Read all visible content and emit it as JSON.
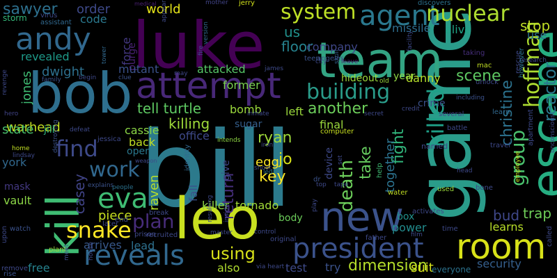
{
  "background": "#000000",
  "words": [
    {
      "text": "bill",
      "color": "#2c7a8c"
    },
    {
      "text": "game",
      "color": "#2a9c8a"
    },
    {
      "text": "luke",
      "color": "#440154"
    },
    {
      "text": "team",
      "color": "#33a483"
    },
    {
      "text": "bob",
      "color": "#2e6f8e"
    },
    {
      "text": "attempt",
      "color": "#482878"
    },
    {
      "text": "escape",
      "color": "#26ad81"
    },
    {
      "text": "leo",
      "color": "#c9e020"
    },
    {
      "text": "new",
      "color": "#3b528b"
    },
    {
      "text": "kill",
      "color": "#3fbc73"
    },
    {
      "text": "andy",
      "color": "#31688e"
    },
    {
      "text": "agent",
      "color": "#2a788e"
    },
    {
      "text": "president",
      "color": "#3b528b"
    },
    {
      "text": "reveals",
      "color": "#31688e"
    },
    {
      "text": "room",
      "color": "#d8e219"
    },
    {
      "text": "nuclear",
      "color": "#addc30"
    },
    {
      "text": "system",
      "color": "#bddf26"
    },
    {
      "text": "building",
      "color": "#2a9c8a"
    },
    {
      "text": "find",
      "color": "#3e4a89"
    },
    {
      "text": "eva",
      "color": "#3fbc73"
    },
    {
      "text": "snake",
      "color": "#fde725"
    },
    {
      "text": "work",
      "color": "#31688e"
    },
    {
      "text": "killed",
      "color": "#1fa088"
    },
    {
      "text": "hoffman",
      "color": "#addc30"
    },
    {
      "text": "group",
      "color": "#4ac16d"
    },
    {
      "text": "reactor",
      "color": "#2a788e"
    },
    {
      "text": "christine",
      "color": "#2c728e"
    },
    {
      "text": "dimension",
      "color": "#b5de2b"
    },
    {
      "text": "plan",
      "color": "#472c7a"
    },
    {
      "text": "using",
      "color": "#d8e219"
    },
    {
      "text": "tell turtle",
      "color": "#5ec962"
    },
    {
      "text": "killing",
      "color": "#9fda3a"
    },
    {
      "text": "warhead",
      "color": "#c2df23"
    },
    {
      "text": "casey",
      "color": "#414487"
    },
    {
      "text": "return",
      "color": "#472f7d"
    },
    {
      "text": "fight",
      "color": "#31b57b"
    },
    {
      "text": "together",
      "color": "#2c728e"
    },
    {
      "text": "ryan",
      "color": "#9fda3a"
    },
    {
      "text": "death",
      "color": "#6ccd5a"
    },
    {
      "text": "take",
      "color": "#65cb5e"
    },
    {
      "text": "key",
      "color": "#fde725"
    },
    {
      "text": "jo",
      "color": "#d8e219"
    },
    {
      "text": "another",
      "color": "#6ccd5a"
    },
    {
      "text": "scene",
      "color": "#5ec962"
    },
    {
      "text": "floor",
      "color": "#26828e"
    },
    {
      "text": "us",
      "color": "#21918c"
    },
    {
      "text": "world",
      "color": "#e5e419"
    },
    {
      "text": "bomb",
      "color": "#9bd93c"
    },
    {
      "text": "sawyer",
      "color": "#2d708e"
    },
    {
      "text": "revealed",
      "color": "#1e9b8a"
    },
    {
      "text": "dwight",
      "color": "#2d708e"
    },
    {
      "text": "jones",
      "color": "#3fbc73"
    },
    {
      "text": "cassie",
      "color": "#8bd646"
    },
    {
      "text": "force",
      "color": "#443983"
    },
    {
      "text": "purge",
      "color": "#482173"
    },
    {
      "text": "mutant",
      "color": "#3b528b"
    },
    {
      "text": "attacked",
      "color": "#56c667"
    },
    {
      "text": "former",
      "color": "#7ad151"
    },
    {
      "text": "order",
      "color": "#3e4989"
    },
    {
      "text": "code",
      "color": "#2a788e"
    },
    {
      "text": "company",
      "color": "#3f4788"
    },
    {
      "text": "missile",
      "color": "#2e6d8e"
    },
    {
      "text": "alive",
      "color": "#20a386"
    },
    {
      "text": "stop",
      "color": "#c0df25"
    },
    {
      "text": "use",
      "color": "#2c728e"
    },
    {
      "text": "state",
      "color": "#4ac16d"
    },
    {
      "text": "jill",
      "color": "#2fb47c"
    },
    {
      "text": "back",
      "color": "#c2df23"
    },
    {
      "text": "open",
      "color": "#2a788e"
    },
    {
      "text": "york",
      "color": "#31688e"
    },
    {
      "text": "left",
      "color": "#9bd93c"
    },
    {
      "text": "sugar",
      "color": "#355f8d"
    },
    {
      "text": "egg",
      "color": "#fde725"
    },
    {
      "text": "office",
      "color": "#3e4989"
    },
    {
      "text": "final",
      "color": "#9bd93c"
    },
    {
      "text": "device",
      "color": "#3e4989"
    },
    {
      "text": "raven",
      "color": "#b5de2b"
    },
    {
      "text": "killer",
      "color": "#8fd744"
    },
    {
      "text": "tornado",
      "color": "#a2da37"
    },
    {
      "text": "fall",
      "color": "#3b528b"
    },
    {
      "text": "give",
      "color": "#3e4989"
    },
    {
      "text": "bud",
      "color": "#3f4889"
    },
    {
      "text": "trap",
      "color": "#6ece58"
    },
    {
      "text": "learns",
      "color": "#b8de29"
    },
    {
      "text": "power",
      "color": "#228c8d"
    },
    {
      "text": "box",
      "color": "#21918c"
    },
    {
      "text": "body",
      "color": "#6ccd5a"
    },
    {
      "text": "piece",
      "color": "#c8e020"
    },
    {
      "text": "arrives",
      "color": "#38598c"
    },
    {
      "text": "lead",
      "color": "#2d708e"
    },
    {
      "text": "free",
      "color": "#26828e"
    },
    {
      "text": "also",
      "color": "#b0dd2f"
    },
    {
      "text": "test",
      "color": "#3e4a89"
    },
    {
      "text": "try",
      "color": "#3b528b"
    },
    {
      "text": "suit",
      "color": "#d5e21a"
    },
    {
      "text": "security",
      "color": "#355f8d"
    },
    {
      "text": "everyone",
      "color": "#2c728e"
    },
    {
      "text": "vault",
      "color": "#8bd646"
    },
    {
      "text": "mask",
      "color": "#443983"
    },
    {
      "text": "danny",
      "color": "#b5de2b"
    },
    {
      "text": "year",
      "color": "#8fd744"
    },
    {
      "text": "crime",
      "color": "#3b528b"
    },
    {
      "text": "storm",
      "color": "#35b779"
    },
    {
      "text": "virus",
      "color": "#3e4989"
    },
    {
      "text": "assistant",
      "color": "#31688e"
    },
    {
      "text": "medical",
      "color": "#482071"
    },
    {
      "text": "mother",
      "color": "#414487"
    },
    {
      "text": "jerry",
      "color": "#d2e21b"
    },
    {
      "text": "discovers",
      "color": "#2c728e"
    },
    {
      "text": "research",
      "color": "#3e4989"
    },
    {
      "text": "city",
      "color": "#3e4989"
    },
    {
      "text": "leave",
      "color": "#481f70"
    },
    {
      "text": "skull",
      "color": "#355f8d"
    },
    {
      "text": "hideout",
      "color": "#9bd93c"
    },
    {
      "text": "old",
      "color": "#9bd93c"
    },
    {
      "text": "facility",
      "color": "#3e4989"
    },
    {
      "text": "taking",
      "color": "#472f7d"
    },
    {
      "text": "mac",
      "color": "#c2df23"
    },
    {
      "text": "tower",
      "color": "#31688e"
    },
    {
      "text": "begin",
      "color": "#3e4989"
    },
    {
      "text": "clue",
      "color": "#3b528b"
    },
    {
      "text": "may",
      "color": "#3f4788"
    },
    {
      "text": "james",
      "color": "#3e4a89"
    },
    {
      "text": "fire",
      "color": "#3e4989"
    },
    {
      "text": "version",
      "color": "#31688e"
    },
    {
      "text": "appears",
      "color": "#3e4989"
    },
    {
      "text": "teen",
      "color": "#3b528b"
    },
    {
      "text": "angeles",
      "color": "#3b528b"
    },
    {
      "text": "rescue",
      "color": "#3e4989"
    },
    {
      "text": "however",
      "color": "#2c728e"
    },
    {
      "text": "unlock",
      "color": "#3e4989"
    },
    {
      "text": "including",
      "color": "#3b528b"
    },
    {
      "text": "learn",
      "color": "#31688e"
    },
    {
      "text": "several",
      "color": "#3e4989"
    },
    {
      "text": "battle",
      "color": "#3e4989"
    },
    {
      "text": "apartment",
      "color": "#3e4989"
    },
    {
      "text": "unconscious",
      "color": "#3e4989"
    },
    {
      "text": "hero",
      "color": "#414487"
    },
    {
      "text": "revenge",
      "color": "#3e4989"
    },
    {
      "text": "family",
      "color": "#3b528b"
    },
    {
      "text": "defeat",
      "color": "#3e4989"
    },
    {
      "text": "jessica",
      "color": "#3e4989"
    },
    {
      "text": "weapon",
      "color": "#3e4989"
    },
    {
      "text": "intends",
      "color": "#8fd744"
    },
    {
      "text": "inmate",
      "color": "#3e4989"
    },
    {
      "text": "secret",
      "color": "#3e4989"
    },
    {
      "text": "iron",
      "color": "#3e4989"
    },
    {
      "text": "computer",
      "color": "#c8e020"
    },
    {
      "text": "credit",
      "color": "#3e4989"
    },
    {
      "text": "home",
      "color": "#c2df23"
    },
    {
      "text": "lindsay",
      "color": "#3e4989"
    },
    {
      "text": "explains",
      "color": "#3b528b"
    },
    {
      "text": "people",
      "color": "#2c728e"
    },
    {
      "text": "destroying",
      "color": "#3b528b"
    },
    {
      "text": "identity",
      "color": "#31688e"
    },
    {
      "text": "shoot",
      "color": "#3e4989"
    },
    {
      "text": "led",
      "color": "#2c728e"
    },
    {
      "text": "set",
      "color": "#3e4989"
    },
    {
      "text": "top",
      "color": "#3e4989"
    },
    {
      "text": "tape",
      "color": "#3e4989"
    },
    {
      "text": "dr",
      "color": "#3b528b"
    },
    {
      "text": "help",
      "color": "#3fbc73"
    },
    {
      "text": "water",
      "color": "#c2df23"
    },
    {
      "text": "used",
      "color": "#9bd93c"
    },
    {
      "text": "named",
      "color": "#3e4989"
    },
    {
      "text": "head",
      "color": "#3e4989"
    },
    {
      "text": "bone",
      "color": "#3e4989"
    },
    {
      "text": "travel",
      "color": "#3e4989"
    },
    {
      "text": "employee",
      "color": "#c8e020"
    },
    {
      "text": "called",
      "color": "#3e4989"
    },
    {
      "text": "watch",
      "color": "#3b528b"
    },
    {
      "text": "upon",
      "color": "#3e4989"
    },
    {
      "text": "plant",
      "color": "#9bd93c"
    },
    {
      "text": "remove",
      "color": "#3e4989"
    },
    {
      "text": "rise",
      "color": "#3b528b"
    },
    {
      "text": "meet",
      "color": "#3e4989"
    },
    {
      "text": "house",
      "color": "#3e4989"
    },
    {
      "text": "break",
      "color": "#3e4989"
    },
    {
      "text": "later",
      "color": "#3e4989"
    },
    {
      "text": "end",
      "color": "#3e4989"
    },
    {
      "text": "prison",
      "color": "#3e4989"
    },
    {
      "text": "recruited",
      "color": "#3e4989"
    },
    {
      "text": "resulting",
      "color": "#3e4989"
    },
    {
      "text": "inside",
      "color": "#3e4989"
    },
    {
      "text": "master",
      "color": "#3e4989"
    },
    {
      "text": "control",
      "color": "#3e4989"
    },
    {
      "text": "via heart",
      "color": "#3e4989"
    },
    {
      "text": "original",
      "color": "#3e4989"
    },
    {
      "text": "play",
      "color": "#3e4989"
    },
    {
      "text": "father",
      "color": "#3e4989"
    },
    {
      "text": "film",
      "color": "#3e4989"
    },
    {
      "text": "time",
      "color": "#3e4989"
    },
    {
      "text": "activates",
      "color": "#3e4989"
    }
  ]
}
